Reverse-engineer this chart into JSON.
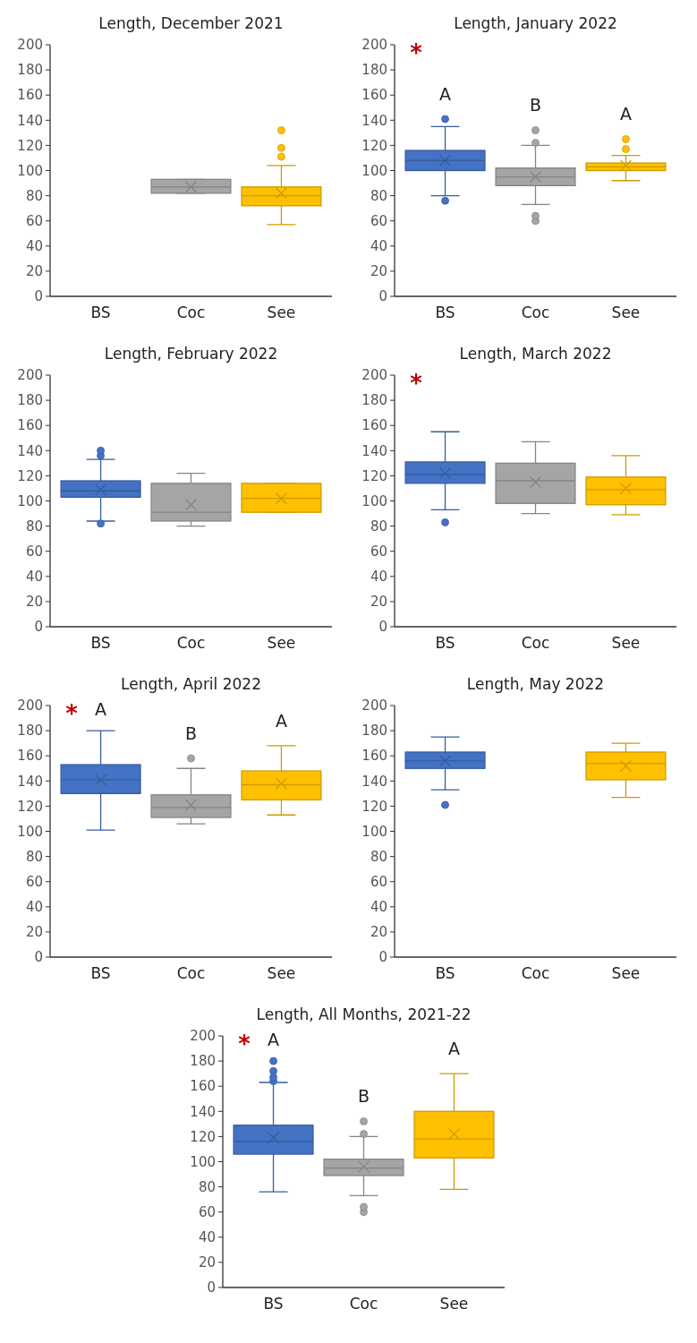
{
  "chart_data": [
    {
      "type": "box",
      "title": "Length, December 2021",
      "categories": [
        "BS",
        "Coc",
        "See"
      ],
      "colors": [
        null,
        "#a5a5a5",
        "#ffc000"
      ],
      "ylim": [
        0,
        200
      ],
      "yticks": [
        0,
        20,
        40,
        60,
        80,
        100,
        120,
        140,
        160,
        180,
        200
      ],
      "boxes": [
        null,
        {
          "low": 82,
          "q1": 82,
          "median": 87,
          "q3": 93,
          "high": 93,
          "mean": 87
        },
        {
          "low": 57,
          "q1": 72,
          "median": 80,
          "q3": 87,
          "high": 104,
          "mean": 82,
          "outliers": [
            111,
            118,
            132
          ]
        }
      ]
    },
    {
      "type": "box",
      "title": "Length, January 2022",
      "categories": [
        "BS",
        "Coc",
        "See"
      ],
      "colors": [
        "#4472c4",
        "#a5a5a5",
        "#ffc000"
      ],
      "ylim": [
        0,
        200
      ],
      "yticks": [
        0,
        20,
        40,
        60,
        80,
        100,
        120,
        140,
        160,
        180,
        200
      ],
      "boxes": [
        {
          "low": 80,
          "q1": 100,
          "median": 108,
          "q3": 116,
          "high": 135,
          "mean": 108,
          "outliers": [
            76,
            141
          ]
        },
        {
          "low": 73,
          "q1": 88,
          "median": 95,
          "q3": 102,
          "high": 120,
          "mean": 95,
          "outliers": [
            60,
            64,
            122,
            132
          ]
        },
        {
          "low": 92,
          "q1": 100,
          "median": 103,
          "q3": 106,
          "high": 112,
          "mean": 104,
          "outliers": [
            117,
            125
          ]
        }
      ],
      "annotations": [
        "*",
        "A",
        "B",
        "A"
      ]
    },
    {
      "type": "box",
      "title": "Length, February 2022",
      "categories": [
        "BS",
        "Coc",
        "See"
      ],
      "colors": [
        "#4472c4",
        "#a5a5a5",
        "#ffc000"
      ],
      "ylim": [
        0,
        200
      ],
      "yticks": [
        0,
        20,
        40,
        60,
        80,
        100,
        120,
        140,
        160,
        180,
        200
      ],
      "boxes": [
        {
          "low": 84,
          "q1": 103,
          "median": 108,
          "q3": 116,
          "high": 133,
          "mean": 109,
          "outliers": [
            82,
            136,
            140
          ]
        },
        {
          "low": 80,
          "q1": 84,
          "median": 91,
          "q3": 114,
          "high": 122,
          "mean": 97
        },
        {
          "low": 91,
          "q1": 91,
          "median": 102,
          "q3": 114,
          "high": 114,
          "mean": 102
        }
      ]
    },
    {
      "type": "box",
      "title": "Length, March 2022",
      "categories": [
        "BS",
        "Coc",
        "See"
      ],
      "colors": [
        "#4472c4",
        "#a5a5a5",
        "#ffc000"
      ],
      "ylim": [
        0,
        200
      ],
      "yticks": [
        0,
        20,
        40,
        60,
        80,
        100,
        120,
        140,
        160,
        180,
        200
      ],
      "boxes": [
        {
          "low": 93,
          "q1": 114,
          "median": 121,
          "q3": 131,
          "high": 155,
          "mean": 122,
          "outliers": [
            83
          ]
        },
        {
          "low": 90,
          "q1": 98,
          "median": 116,
          "q3": 130,
          "high": 147,
          "mean": 115
        },
        {
          "low": 89,
          "q1": 97,
          "median": 109,
          "q3": 119,
          "high": 136,
          "mean": 110
        }
      ],
      "annotations": [
        "*"
      ]
    },
    {
      "type": "box",
      "title": "Length, April 2022",
      "categories": [
        "BS",
        "Coc",
        "See"
      ],
      "colors": [
        "#4472c4",
        "#a5a5a5",
        "#ffc000"
      ],
      "ylim": [
        0,
        200
      ],
      "yticks": [
        0,
        20,
        40,
        60,
        80,
        100,
        120,
        140,
        160,
        180,
        200
      ],
      "boxes": [
        {
          "low": 101,
          "q1": 130,
          "median": 141,
          "q3": 153,
          "high": 180,
          "mean": 141
        },
        {
          "low": 106,
          "q1": 111,
          "median": 119,
          "q3": 129,
          "high": 150,
          "mean": 121,
          "outliers": [
            158
          ]
        },
        {
          "low": 113,
          "q1": 125,
          "median": 137,
          "q3": 148,
          "high": 168,
          "mean": 138
        }
      ],
      "annotations": [
        "*",
        "A",
        "B",
        "A"
      ]
    },
    {
      "type": "box",
      "title": "Length, May 2022",
      "categories": [
        "BS",
        "Coc",
        "See"
      ],
      "colors": [
        "#4472c4",
        null,
        "#ffc000"
      ],
      "ylim": [
        0,
        200
      ],
      "yticks": [
        0,
        20,
        40,
        60,
        80,
        100,
        120,
        140,
        160,
        180,
        200
      ],
      "boxes": [
        {
          "low": 133,
          "q1": 150,
          "median": 156,
          "q3": 163,
          "high": 175,
          "mean": 156,
          "outliers": [
            121
          ]
        },
        null,
        {
          "low": 127,
          "q1": 141,
          "median": 154,
          "q3": 163,
          "high": 170,
          "mean": 152
        }
      ]
    },
    {
      "type": "box",
      "title": "Length, All Months, 2021-22",
      "categories": [
        "BS",
        "Coc",
        "See"
      ],
      "colors": [
        "#4472c4",
        "#a5a5a5",
        "#ffc000"
      ],
      "ylim": [
        0,
        200
      ],
      "yticks": [
        0,
        20,
        40,
        60,
        80,
        100,
        120,
        140,
        160,
        180,
        200
      ],
      "boxes": [
        {
          "low": 76,
          "q1": 106,
          "median": 116,
          "q3": 129,
          "high": 163,
          "mean": 119,
          "outliers": [
            164,
            167,
            172,
            180
          ]
        },
        {
          "low": 73,
          "q1": 89,
          "median": 95,
          "q3": 102,
          "high": 120,
          "mean": 96,
          "outliers": [
            60,
            64,
            122,
            132
          ]
        },
        {
          "low": 78,
          "q1": 103,
          "median": 118,
          "q3": 140,
          "high": 170,
          "mean": 122
        }
      ],
      "annotations": [
        "*",
        "A",
        "B",
        "A"
      ]
    }
  ]
}
